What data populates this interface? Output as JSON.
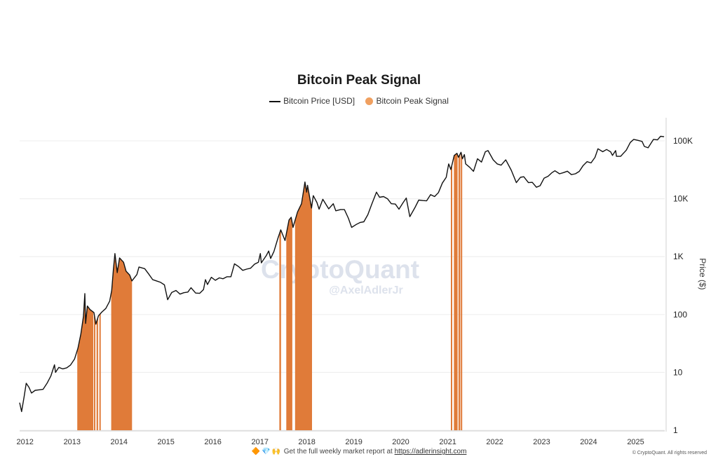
{
  "chart_data": {
    "type": "line",
    "title": "Bitcoin Peak Signal",
    "xlabel": "",
    "ylabel": "Price ($)",
    "y_scale": "log",
    "ylim": [
      1,
      170000
    ],
    "xlim": [
      "2011-11-20",
      "2025-08-15"
    ],
    "x_ticks": [
      "2012",
      "2013",
      "2014",
      "2015",
      "2016",
      "2017",
      "2018",
      "2019",
      "2020",
      "2021",
      "2022",
      "2023",
      "2024",
      "2025"
    ],
    "y_ticks": [
      {
        "value": 1,
        "label": "1"
      },
      {
        "value": 10,
        "label": "10"
      },
      {
        "value": 100,
        "label": "100"
      },
      {
        "value": 1000,
        "label": "1K"
      },
      {
        "value": 10000,
        "label": "10K"
      },
      {
        "value": 100000,
        "label": "100K"
      }
    ],
    "grid": "horizontal",
    "legend": "top-center",
    "series": [
      {
        "name": "Bitcoin Price [USD]",
        "color": "#111111",
        "points": [
          [
            "2011-11-20",
            3.0
          ],
          [
            "2011-12-05",
            2.1
          ],
          [
            "2011-12-25",
            3.8
          ],
          [
            "2012-01-10",
            6.5
          ],
          [
            "2012-02-01",
            5.5
          ],
          [
            "2012-02-20",
            4.4
          ],
          [
            "2012-03-20",
            4.9
          ],
          [
            "2012-04-20",
            5.0
          ],
          [
            "2012-05-20",
            5.1
          ],
          [
            "2012-06-20",
            6.5
          ],
          [
            "2012-07-20",
            8.7
          ],
          [
            "2012-08-17",
            13.5
          ],
          [
            "2012-08-25",
            10.0
          ],
          [
            "2012-09-20",
            12.2
          ],
          [
            "2012-10-20",
            11.5
          ],
          [
            "2012-11-20",
            12.0
          ],
          [
            "2012-12-20",
            13.4
          ],
          [
            "2013-01-20",
            17.0
          ],
          [
            "2013-02-15",
            26.0
          ],
          [
            "2013-03-10",
            46.0
          ],
          [
            "2013-03-30",
            93.0
          ],
          [
            "2013-04-10",
            230.0
          ],
          [
            "2013-04-16",
            70.0
          ],
          [
            "2013-04-30",
            140.0
          ],
          [
            "2013-05-20",
            122.0
          ],
          [
            "2013-06-20",
            108.0
          ],
          [
            "2013-07-05",
            68.0
          ],
          [
            "2013-07-25",
            95.0
          ],
          [
            "2013-08-20",
            110.0
          ],
          [
            "2013-09-20",
            127.0
          ],
          [
            "2013-10-20",
            170.0
          ],
          [
            "2013-11-05",
            260.0
          ],
          [
            "2013-11-18",
            600.0
          ],
          [
            "2013-11-30",
            1130.0
          ],
          [
            "2013-12-18",
            530.0
          ],
          [
            "2014-01-05",
            950.0
          ],
          [
            "2014-02-05",
            800.0
          ],
          [
            "2014-02-25",
            560.0
          ],
          [
            "2014-03-25",
            480.0
          ],
          [
            "2014-04-11",
            380.0
          ],
          [
            "2014-05-20",
            490.0
          ],
          [
            "2014-06-05",
            660.0
          ],
          [
            "2014-07-20",
            620.0
          ],
          [
            "2014-08-20",
            500.0
          ],
          [
            "2014-09-20",
            400.0
          ],
          [
            "2014-10-20",
            380.0
          ],
          [
            "2014-11-20",
            360.0
          ],
          [
            "2014-12-20",
            325.0
          ],
          [
            "2015-01-14",
            180.0
          ],
          [
            "2015-02-15",
            240.0
          ],
          [
            "2015-03-20",
            260.0
          ],
          [
            "2015-04-20",
            225.0
          ],
          [
            "2015-05-20",
            238.0
          ],
          [
            "2015-06-20",
            244.0
          ],
          [
            "2015-07-15",
            290.0
          ],
          [
            "2015-08-20",
            235.0
          ],
          [
            "2015-09-20",
            232.0
          ],
          [
            "2015-10-20",
            270.0
          ],
          [
            "2015-11-04",
            400.0
          ],
          [
            "2015-11-20",
            330.0
          ],
          [
            "2015-12-20",
            440.0
          ],
          [
            "2016-01-20",
            390.0
          ],
          [
            "2016-02-20",
            430.0
          ],
          [
            "2016-03-20",
            415.0
          ],
          [
            "2016-04-20",
            450.0
          ],
          [
            "2016-05-20",
            450.0
          ],
          [
            "2016-06-17",
            750.0
          ],
          [
            "2016-07-20",
            670.0
          ],
          [
            "2016-08-20",
            580.0
          ],
          [
            "2016-09-20",
            610.0
          ],
          [
            "2016-10-20",
            630.0
          ],
          [
            "2016-11-20",
            740.0
          ],
          [
            "2016-12-20",
            800.0
          ],
          [
            "2017-01-04",
            1130.0
          ],
          [
            "2017-01-12",
            780.0
          ],
          [
            "2017-02-20",
            1050.0
          ],
          [
            "2017-03-10",
            1250.0
          ],
          [
            "2017-03-25",
            930.0
          ],
          [
            "2017-04-20",
            1230.0
          ],
          [
            "2017-05-20",
            2050.0
          ],
          [
            "2017-06-12",
            2900.0
          ],
          [
            "2017-07-15",
            1900.0
          ],
          [
            "2017-08-15",
            4300.0
          ],
          [
            "2017-09-01",
            4800.0
          ],
          [
            "2017-09-15",
            3200.0
          ],
          [
            "2017-10-20",
            5900.0
          ],
          [
            "2017-11-20",
            8200.0
          ],
          [
            "2017-12-17",
            19500.0
          ],
          [
            "2017-12-30",
            13000.0
          ],
          [
            "2018-01-06",
            17100.0
          ],
          [
            "2018-02-06",
            6900.0
          ],
          [
            "2018-02-20",
            11300.0
          ],
          [
            "2018-03-20",
            8600.0
          ],
          [
            "2018-04-06",
            6600.0
          ],
          [
            "2018-05-05",
            9800.0
          ],
          [
            "2018-06-20",
            6700.0
          ],
          [
            "2018-07-25",
            8200.0
          ],
          [
            "2018-08-14",
            6200.0
          ],
          [
            "2018-09-20",
            6500.0
          ],
          [
            "2018-10-20",
            6500.0
          ],
          [
            "2018-11-20",
            4600.0
          ],
          [
            "2018-12-15",
            3200.0
          ],
          [
            "2019-01-20",
            3600.0
          ],
          [
            "2019-02-20",
            3900.0
          ],
          [
            "2019-03-20",
            4000.0
          ],
          [
            "2019-04-20",
            5300.0
          ],
          [
            "2019-05-20",
            8000.0
          ],
          [
            "2019-06-26",
            13000.0
          ],
          [
            "2019-07-20",
            10600.0
          ],
          [
            "2019-08-20",
            10900.0
          ],
          [
            "2019-09-20",
            10000.0
          ],
          [
            "2019-10-20",
            8200.0
          ],
          [
            "2019-11-20",
            8100.0
          ],
          [
            "2019-12-18",
            6600.0
          ],
          [
            "2020-01-20",
            8600.0
          ],
          [
            "2020-02-13",
            10300.0
          ],
          [
            "2020-03-12",
            4900.0
          ],
          [
            "2020-04-20",
            7000.0
          ],
          [
            "2020-05-20",
            9500.0
          ],
          [
            "2020-06-20",
            9300.0
          ],
          [
            "2020-07-20",
            9200.0
          ],
          [
            "2020-08-20",
            11800.0
          ],
          [
            "2020-09-20",
            10900.0
          ],
          [
            "2020-10-20",
            12800.0
          ],
          [
            "2020-11-20",
            18700.0
          ],
          [
            "2020-12-20",
            23500.0
          ],
          [
            "2021-01-08",
            40000.0
          ],
          [
            "2021-01-25",
            32000.0
          ],
          [
            "2021-02-20",
            56000.0
          ],
          [
            "2021-03-13",
            61000.0
          ],
          [
            "2021-03-25",
            52000.0
          ],
          [
            "2021-04-14",
            63500.0
          ],
          [
            "2021-04-25",
            49000.0
          ],
          [
            "2021-05-10",
            58000.0
          ],
          [
            "2021-05-20",
            40000.0
          ],
          [
            "2021-06-20",
            35000.0
          ],
          [
            "2021-07-20",
            29800.0
          ],
          [
            "2021-08-20",
            49000.0
          ],
          [
            "2021-09-20",
            43000.0
          ],
          [
            "2021-10-20",
            65000.0
          ],
          [
            "2021-11-10",
            68000.0
          ],
          [
            "2021-12-20",
            47000.0
          ],
          [
            "2022-01-20",
            40000.0
          ],
          [
            "2022-02-20",
            38000.0
          ],
          [
            "2022-03-28",
            47000.0
          ],
          [
            "2022-05-10",
            31000.0
          ],
          [
            "2022-06-18",
            19000.0
          ],
          [
            "2022-07-20",
            23500.0
          ],
          [
            "2022-08-15",
            24000.0
          ],
          [
            "2022-09-20",
            19000.0
          ],
          [
            "2022-10-20",
            19200.0
          ],
          [
            "2022-11-21",
            15800.0
          ],
          [
            "2022-12-20",
            16800.0
          ],
          [
            "2023-01-20",
            22700.0
          ],
          [
            "2023-02-20",
            24500.0
          ],
          [
            "2023-03-20",
            28000.0
          ],
          [
            "2023-04-14",
            30400.0
          ],
          [
            "2023-05-20",
            27000.0
          ],
          [
            "2023-06-20",
            28300.0
          ],
          [
            "2023-07-20",
            29900.0
          ],
          [
            "2023-08-20",
            26100.0
          ],
          [
            "2023-09-20",
            27000.0
          ],
          [
            "2023-10-20",
            29700.0
          ],
          [
            "2023-11-20",
            37500.0
          ],
          [
            "2023-12-20",
            43700.0
          ],
          [
            "2024-01-20",
            41600.0
          ],
          [
            "2024-02-20",
            52000.0
          ],
          [
            "2024-03-14",
            73000.0
          ],
          [
            "2024-04-20",
            64900.0
          ],
          [
            "2024-05-20",
            71000.0
          ],
          [
            "2024-06-20",
            64800.0
          ],
          [
            "2024-07-05",
            56000.0
          ],
          [
            "2024-07-29",
            68000.0
          ],
          [
            "2024-08-05",
            54000.0
          ],
          [
            "2024-09-06",
            54000.0
          ],
          [
            "2024-10-20",
            69000.0
          ],
          [
            "2024-11-20",
            94000.0
          ],
          [
            "2024-12-17",
            106000.0
          ],
          [
            "2025-01-20",
            102000.0
          ],
          [
            "2025-02-20",
            98000.0
          ],
          [
            "2025-03-10",
            80000.0
          ],
          [
            "2025-04-08",
            76000.0
          ],
          [
            "2025-05-20",
            106000.0
          ],
          [
            "2025-06-20",
            104000.0
          ],
          [
            "2025-07-14",
            120000.0
          ],
          [
            "2025-08-10",
            118000.0
          ]
        ]
      },
      {
        "name": "Bitcoin Peak Signal",
        "color": "#e07b39",
        "periods": [
          [
            "2013-02-10",
            "2013-06-15"
          ],
          [
            "2013-06-20",
            "2013-07-01"
          ],
          [
            "2013-07-10",
            "2013-07-22"
          ],
          [
            "2013-08-01",
            "2013-08-10"
          ],
          [
            "2013-11-01",
            "2014-04-12"
          ],
          [
            "2017-06-01",
            "2017-06-14"
          ],
          [
            "2017-07-25",
            "2017-09-10"
          ],
          [
            "2017-10-01",
            "2018-02-10"
          ],
          [
            "2021-01-25",
            "2021-02-03"
          ],
          [
            "2021-02-18",
            "2021-03-18"
          ],
          [
            "2021-03-25",
            "2021-04-08"
          ],
          [
            "2021-04-12",
            "2021-04-18"
          ]
        ]
      }
    ]
  },
  "watermark": {
    "logo": "CryptoQuant",
    "handle": "@AxelAdlerJr"
  },
  "footer": {
    "icons": "🔶💎🙌",
    "text": "Get the full weekly market report at",
    "link": "https://adlerinsight.com"
  },
  "copyright": "© CryptoQuant. All rights reserved"
}
